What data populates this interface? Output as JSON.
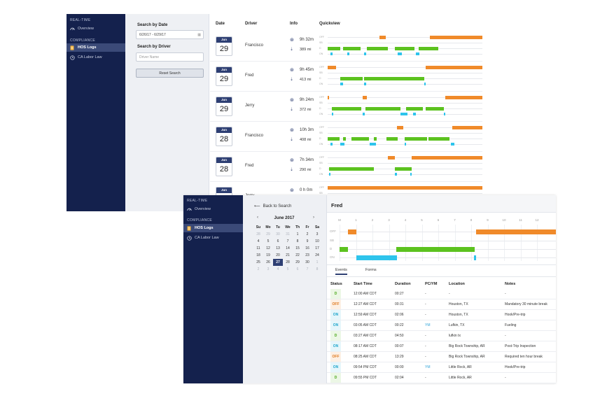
{
  "back_window": {
    "nav": {
      "section_realtime": "REAL-TIME",
      "overview": "Overview",
      "section_compliance": "COMPLIANCE",
      "hos_logs": "HOS Logs",
      "ca_labor_law": "CA Labor Law"
    },
    "filters": {
      "date_label": "Search by Date",
      "date_value": "6/26/17 - 6/29/17",
      "driver_label": "Search by Driver",
      "driver_placeholder": "Driver Name",
      "reset_label": "Reset Search"
    },
    "columns": {
      "date": "Date",
      "driver": "Driver",
      "info": "Info",
      "quickview": "Quickview"
    },
    "quickview_labels": [
      "OFF",
      "SB",
      "D",
      "ON"
    ],
    "rows": [
      {
        "month": "Jun",
        "day": "29",
        "driver": "Francisco",
        "hours": "9h 32m",
        "miles": "389 mi"
      },
      {
        "month": "Jun",
        "day": "29",
        "driver": "Fred",
        "hours": "9h 45m",
        "miles": "413 mi"
      },
      {
        "month": "Jun",
        "day": "29",
        "driver": "Jerry",
        "hours": "9h 24m",
        "miles": "372 mi"
      },
      {
        "month": "Jun",
        "day": "28",
        "driver": "Francisco",
        "hours": "10h 3m",
        "miles": "408 mi"
      },
      {
        "month": "Jun",
        "day": "28",
        "driver": "Fred",
        "hours": "7h 34m",
        "miles": "290 mi"
      },
      {
        "month": "Jun",
        "day": "",
        "driver": "Jerry",
        "hours": "0 h 0m",
        "miles": ""
      }
    ]
  },
  "front_window": {
    "nav": {
      "section_realtime": "REAL-TIME",
      "overview": "Overview",
      "section_compliance": "COMPLIANCE",
      "hos_logs": "HOS Logs",
      "ca_labor_law": "CA Labor Law"
    },
    "back_link": "Back to Search",
    "calendar": {
      "month_year": "June 2017",
      "prev": "‹",
      "next": "›",
      "dow": [
        "Su",
        "Mo",
        "Tu",
        "We",
        "Th",
        "Fr",
        "Sa"
      ],
      "weeks": [
        [
          "28",
          "29",
          "30",
          "31",
          "1",
          "2",
          "3"
        ],
        [
          "4",
          "5",
          "6",
          "7",
          "8",
          "9",
          "10"
        ],
        [
          "11",
          "12",
          "13",
          "14",
          "15",
          "16",
          "17"
        ],
        [
          "18",
          "19",
          "20",
          "21",
          "22",
          "23",
          "24"
        ],
        [
          "25",
          "26",
          "27",
          "28",
          "29",
          "30",
          "1"
        ],
        [
          "2",
          "3",
          "4",
          "5",
          "6",
          "7",
          "8"
        ]
      ],
      "selected": "27"
    },
    "driver_name": "Fred",
    "timeline": {
      "hours": [
        "M",
        "1",
        "2",
        "3",
        "4",
        "5",
        "6",
        "7",
        "8",
        "9",
        "10",
        "11",
        "12"
      ],
      "status_labels": [
        "OFF",
        "SB",
        "D",
        "ON"
      ]
    },
    "tabs": {
      "events": "Events",
      "forms": "Forms"
    },
    "table": {
      "headers": {
        "status": "Status",
        "start": "Start Time",
        "duration": "Duration",
        "pcym": "PC/YM",
        "location": "Location",
        "notes": "Notes"
      },
      "rows": [
        {
          "status": "D",
          "start": "12:00 AM CDT",
          "duration": "00:27",
          "pcym": "-",
          "location": "-",
          "notes": "-"
        },
        {
          "status": "OFF",
          "start": "12:27 AM CDT",
          "duration": "00:31",
          "pcym": "-",
          "location": "Houston, TX",
          "notes": "Mandatory 30 minute break"
        },
        {
          "status": "ON",
          "start": "12:59 AM CDT",
          "duration": "02:06",
          "pcym": "-",
          "location": "Houston, TX",
          "notes": "Hook/Pre-trip"
        },
        {
          "status": "ON",
          "start": "03:05 AM CDT",
          "duration": "00:22",
          "pcym": "YM",
          "location": "Lufkin, TX",
          "notes": "Fueling"
        },
        {
          "status": "D",
          "start": "03:27 AM CDT",
          "duration": "04:50",
          "pcym": "-",
          "location": "lufkin tx",
          "notes": "-"
        },
        {
          "status": "ON",
          "start": "08:17 AM CDT",
          "duration": "00:07",
          "pcym": "-",
          "location": "Big Rock Township, AR",
          "notes": "Post-Trip Inspection"
        },
        {
          "status": "OFF",
          "start": "08:25 AM CDT",
          "duration": "13:29",
          "pcym": "-",
          "location": "Big Rock Township, AR",
          "notes": "Required ten hour break"
        },
        {
          "status": "ON",
          "start": "09:54 PM CDT",
          "duration": "00:00",
          "pcym": "YM",
          "location": "Little Rock, AR",
          "notes": "Hook/Pre-trip"
        },
        {
          "status": "D",
          "start": "09:55 PM CDT",
          "duration": "02:04",
          "pcym": "-",
          "location": "Little Rock, AR",
          "notes": "-"
        }
      ]
    }
  },
  "colors": {
    "navy": "#14214d",
    "off": "#f08a2a",
    "driving": "#5cc21f",
    "on_duty": "#2ec4ec"
  }
}
